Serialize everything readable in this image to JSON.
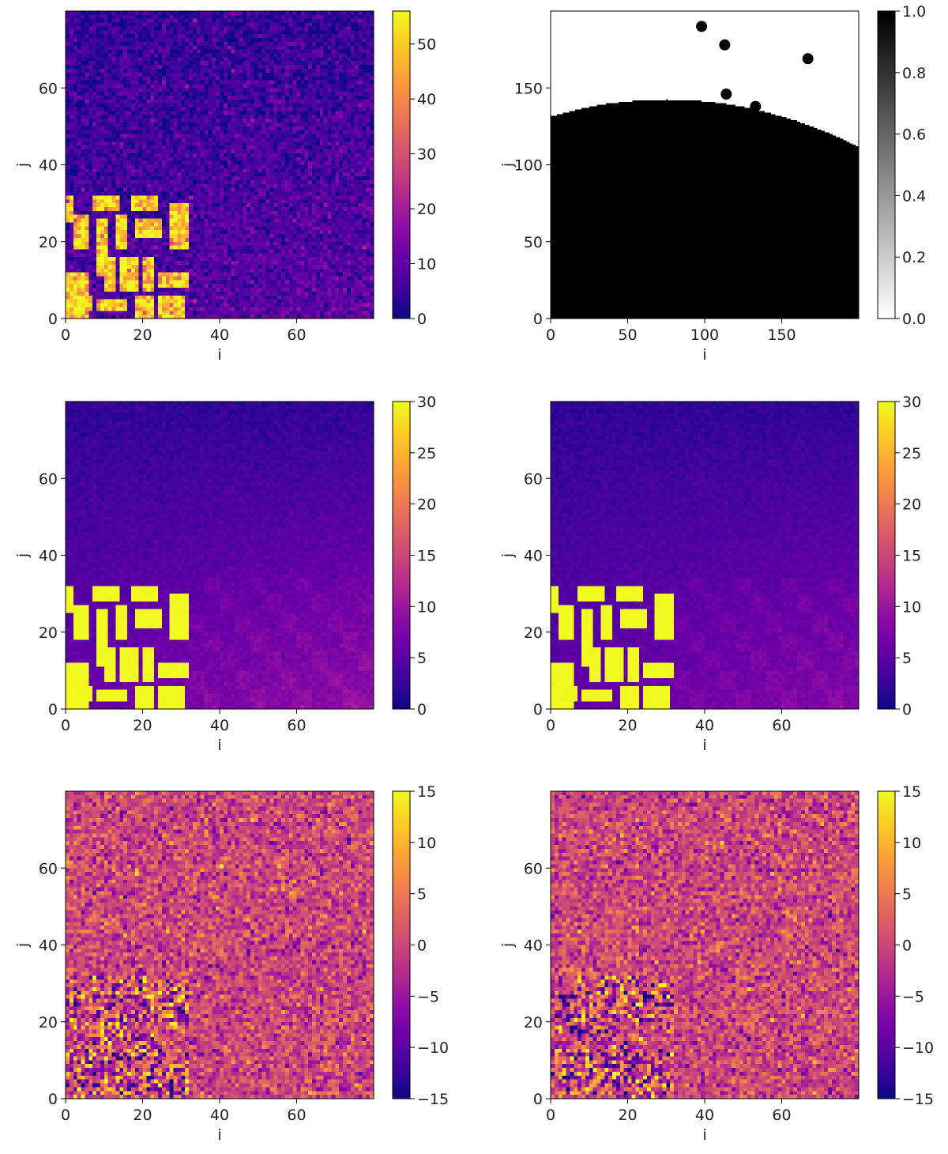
{
  "chart_data": [
    {
      "type": "heatmap",
      "xlabel": "i",
      "ylabel": "j",
      "x_range": [
        0,
        80
      ],
      "y_range": [
        0,
        80
      ],
      "xticks": [
        0,
        20,
        40,
        60
      ],
      "yticks": [
        0,
        20,
        40,
        60
      ],
      "colormap": "plasma",
      "color_range": [
        0,
        56
      ],
      "colorbar_ticks": [
        0,
        10,
        20,
        30,
        40,
        50
      ],
      "pattern": "noisy_blocks",
      "block_region": {
        "i": [
          0,
          32
        ],
        "j": [
          0,
          32
        ],
        "value": 50
      },
      "background": {
        "bottom_right_value": 10,
        "top_value": 4
      },
      "noise": 4
    },
    {
      "type": "heatmap",
      "xlabel": "i",
      "ylabel": "j",
      "x_range": [
        0,
        200
      ],
      "y_range": [
        0,
        200
      ],
      "xticks": [
        0,
        50,
        100,
        150
      ],
      "yticks": [
        0,
        50,
        100,
        150
      ],
      "colormap": "gray_r",
      "color_range": [
        0,
        1
      ],
      "colorbar_ticks": [
        0.0,
        0.2,
        0.4,
        0.6,
        0.8,
        1.0
      ],
      "pattern": "mask",
      "mask_boundary": {
        "j_at_i0": 131,
        "peak_i": 75,
        "peak_j": 142,
        "j_at_i200": 111
      },
      "dots": [
        {
          "i": 98,
          "j": 190
        },
        {
          "i": 113,
          "j": 178
        },
        {
          "i": 167,
          "j": 169
        },
        {
          "i": 114,
          "j": 146
        },
        {
          "i": 133,
          "j": 138
        }
      ]
    },
    {
      "type": "heatmap",
      "xlabel": "i",
      "ylabel": "j",
      "x_range": [
        0,
        80
      ],
      "y_range": [
        0,
        80
      ],
      "xticks": [
        0,
        20,
        40,
        60
      ],
      "yticks": [
        0,
        20,
        40,
        60
      ],
      "colormap": "plasma",
      "color_range": [
        0,
        30
      ],
      "colorbar_ticks": [
        0,
        5,
        10,
        15,
        20,
        25,
        30
      ],
      "pattern": "smooth_blocks",
      "block_region": {
        "i": [
          0,
          32
        ],
        "j": [
          0,
          32
        ],
        "value": 30
      },
      "background": {
        "bottom_right_value": 9,
        "top_value": 2
      },
      "noise": 0.6
    },
    {
      "type": "heatmap",
      "xlabel": "i",
      "ylabel": "j",
      "x_range": [
        0,
        80
      ],
      "y_range": [
        0,
        80
      ],
      "xticks": [
        0,
        20,
        40,
        60
      ],
      "yticks": [
        0,
        20,
        40,
        60
      ],
      "colormap": "plasma",
      "color_range": [
        0,
        30
      ],
      "colorbar_ticks": [
        0,
        5,
        10,
        15,
        20,
        25,
        30
      ],
      "pattern": "smooth_blocks",
      "block_region": {
        "i": [
          0,
          32
        ],
        "j": [
          0,
          32
        ],
        "value": 30
      },
      "background": {
        "bottom_right_value": 8,
        "top_value": 2
      },
      "noise": 0.5
    },
    {
      "type": "heatmap",
      "xlabel": "i",
      "ylabel": "j",
      "x_range": [
        0,
        80
      ],
      "y_range": [
        0,
        80
      ],
      "xticks": [
        0,
        20,
        40,
        60
      ],
      "yticks": [
        0,
        20,
        40,
        60
      ],
      "colormap": "plasma",
      "color_range": [
        -15,
        15
      ],
      "colorbar_ticks": [
        -15,
        -10,
        -5,
        0,
        5,
        10,
        15
      ],
      "pattern": "residual",
      "block_region": {
        "i": [
          0,
          32
        ],
        "j": [
          0,
          32
        ]
      },
      "noise": 3.5
    },
    {
      "type": "heatmap",
      "xlabel": "i",
      "ylabel": "j",
      "x_range": [
        0,
        80
      ],
      "y_range": [
        0,
        80
      ],
      "xticks": [
        0,
        20,
        40,
        60
      ],
      "yticks": [
        0,
        20,
        40,
        60
      ],
      "colormap": "plasma",
      "color_range": [
        -15,
        15
      ],
      "colorbar_ticks": [
        -15,
        -10,
        -5,
        0,
        5,
        10,
        15
      ],
      "pattern": "residual",
      "block_region": {
        "i": [
          0,
          32
        ],
        "j": [
          0,
          32
        ]
      },
      "noise": 3.5
    }
  ]
}
